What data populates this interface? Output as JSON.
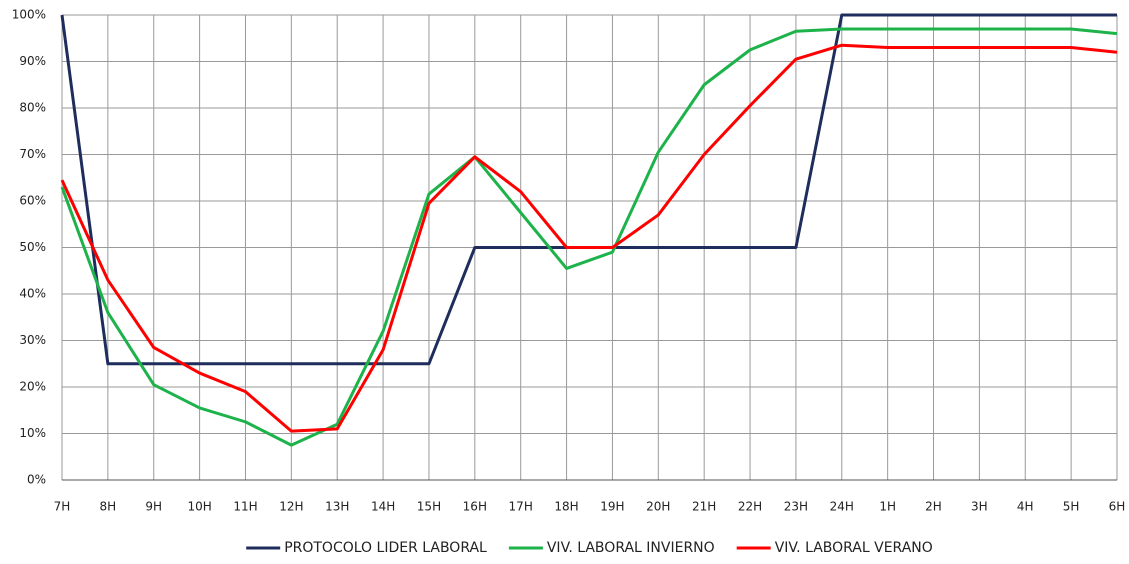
{
  "chart_data": {
    "type": "line",
    "categories": [
      "7H",
      "8H",
      "9H",
      "10H",
      "11H",
      "12H",
      "13H",
      "14H",
      "15H",
      "16H",
      "17H",
      "18H",
      "19H",
      "20H",
      "21H",
      "22H",
      "23H",
      "24H",
      "1H",
      "2H",
      "3H",
      "4H",
      "5H",
      "6H"
    ],
    "series": [
      {
        "name": "PROTOCOLO LIDER LABORAL",
        "color": "#1f2d5c",
        "values": [
          100,
          25,
          25,
          25,
          25,
          25,
          25,
          25,
          25,
          50,
          50,
          50,
          50,
          50,
          50,
          50,
          50,
          100,
          100,
          100,
          100,
          100,
          100,
          100
        ]
      },
      {
        "name": "VIV. LABORAL INVIERNO",
        "color": "#1db34a",
        "values": [
          63,
          36,
          20.5,
          15.5,
          12.5,
          7.5,
          12,
          32,
          61.5,
          69.5,
          57.5,
          45.5,
          49,
          70.5,
          85,
          92.5,
          96.5,
          97,
          97,
          97,
          97,
          97,
          97,
          96
        ]
      },
      {
        "name": "VIV. LABORAL VERANO",
        "color": "#ff0000",
        "values": [
          64.5,
          43,
          28.5,
          23,
          19,
          10.5,
          11,
          28,
          59.5,
          69.5,
          62,
          50,
          50,
          57,
          70,
          80.5,
          90.5,
          93.5,
          93,
          93,
          93,
          93,
          93,
          92
        ]
      }
    ],
    "ylim": [
      0,
      100
    ],
    "yticks": [
      {
        "value": 0,
        "label": "0%"
      },
      {
        "value": 10,
        "label": "10%"
      },
      {
        "value": 20,
        "label": "20%"
      },
      {
        "value": 30,
        "label": "30%"
      },
      {
        "value": 40,
        "label": "40%"
      },
      {
        "value": 50,
        "label": "50%"
      },
      {
        "value": 60,
        "label": "60%"
      },
      {
        "value": 70,
        "label": "70%"
      },
      {
        "value": 80,
        "label": "80%"
      },
      {
        "value": 90,
        "label": "90%"
      },
      {
        "value": 100,
        "label": "100%"
      }
    ],
    "grid": true,
    "legend": "bottom"
  }
}
